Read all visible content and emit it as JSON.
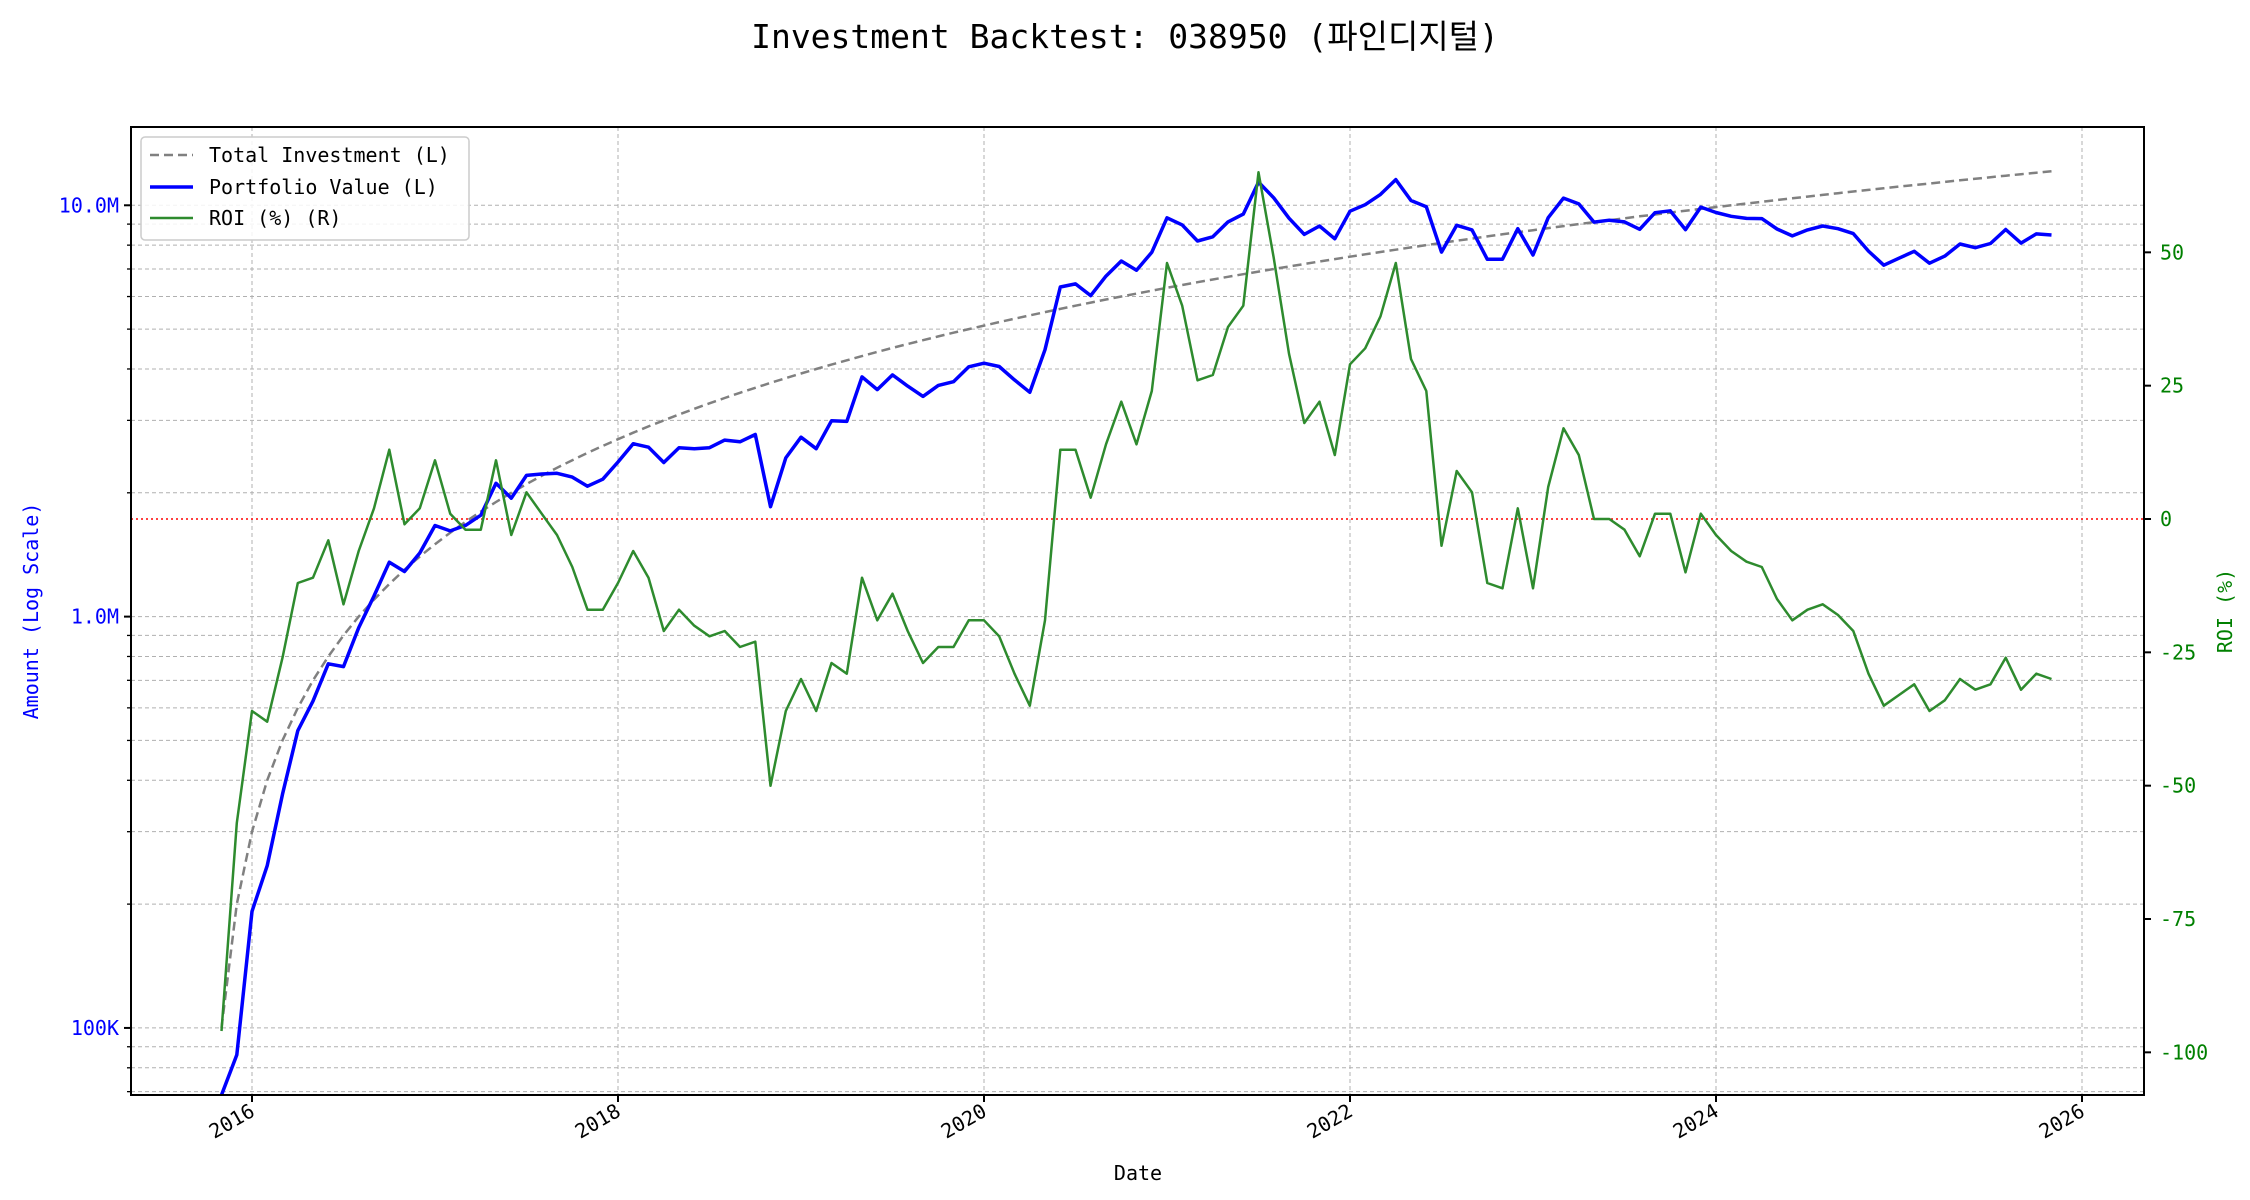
{
  "chart_data": {
    "type": "line",
    "title": "Investment Backtest: 038950 (파인디지털)",
    "xlabel": "Date",
    "ylabel_left": "Amount (Log Scale)",
    "ylabel_right": "ROI (%)",
    "start_month": "2015-11",
    "frequency": "monthly",
    "monthly_investment": 100000,
    "x_ticks": [
      "2016",
      "2018",
      "2020",
      "2022",
      "2024",
      "2026"
    ],
    "left_ticks": [
      {
        "value": 100000,
        "label": "100K"
      },
      {
        "value": 1000000,
        "label": "1.0M"
      },
      {
        "value": 10000000,
        "label": "10.0M"
      }
    ],
    "right_ticks": [
      {
        "value": 50,
        "label": "50"
      },
      {
        "value": 25,
        "label": "25"
      },
      {
        "value": 0,
        "label": "0"
      },
      {
        "value": -25,
        "label": "-25"
      },
      {
        "value": -50,
        "label": "-50"
      },
      {
        "value": -75,
        "label": "-75"
      },
      {
        "value": -100,
        "label": "-100"
      }
    ],
    "left_ylim": [
      68700,
      15500000
    ],
    "right_ylim": [
      -108,
      73.5
    ],
    "left_scale": "log",
    "grid": true,
    "legend_position": "top-left",
    "legend": [
      "Total Investment (L)",
      "Portfolio Value (L)",
      "ROI (%) (R)"
    ],
    "colors": {
      "investment": "#808080",
      "portfolio": "#0000ff",
      "roi": "#2e8b2e",
      "zero_line": "#ff0000",
      "left_axis": "#0000ff",
      "right_axis": "#008000"
    },
    "series": [
      {
        "name": "Total Investment (L)",
        "axis": "left",
        "derived": "monthly_investment * month_count"
      },
      {
        "name": "Portfolio Value (L)",
        "axis": "left",
        "derived": "investment * (1 + roi/100)"
      },
      {
        "name": "ROI (%) (R)",
        "axis": "right",
        "values": [
          -96,
          -57,
          -36,
          -38,
          -26,
          -12,
          -11,
          -4,
          -16,
          -6,
          2,
          13,
          -1,
          2,
          11,
          1,
          -2,
          -2,
          11,
          -3,
          5,
          1,
          -3,
          -9,
          -17,
          -17,
          -12,
          -6,
          -11,
          -21,
          -17,
          -20,
          -22,
          -21,
          -24,
          -23,
          -50,
          -36,
          -30,
          -36,
          -27,
          -29,
          -11,
          -19,
          -14,
          -21,
          -27,
          -24,
          -24,
          -19,
          -19,
          -22,
          -29,
          -35,
          -19,
          13,
          13,
          4,
          14,
          22,
          14,
          24,
          48,
          40,
          26,
          27,
          36,
          40,
          65,
          49,
          31,
          18,
          22,
          12,
          29,
          32,
          38,
          48,
          30,
          24,
          -5,
          9,
          5,
          -12,
          -13,
          2,
          -13,
          6,
          17,
          12,
          0,
          0,
          -2,
          -7,
          1,
          1,
          -10,
          1,
          -3,
          -6,
          -8,
          -9,
          -15,
          -19,
          -17,
          -16,
          -18,
          -21,
          -29,
          -35,
          -33,
          -31,
          -36,
          -34,
          -30,
          -32,
          -31,
          -26,
          -32,
          -29,
          -30
        ]
      }
    ],
    "reference_line": {
      "axis": "right",
      "value": 0,
      "style": "dotted"
    }
  }
}
